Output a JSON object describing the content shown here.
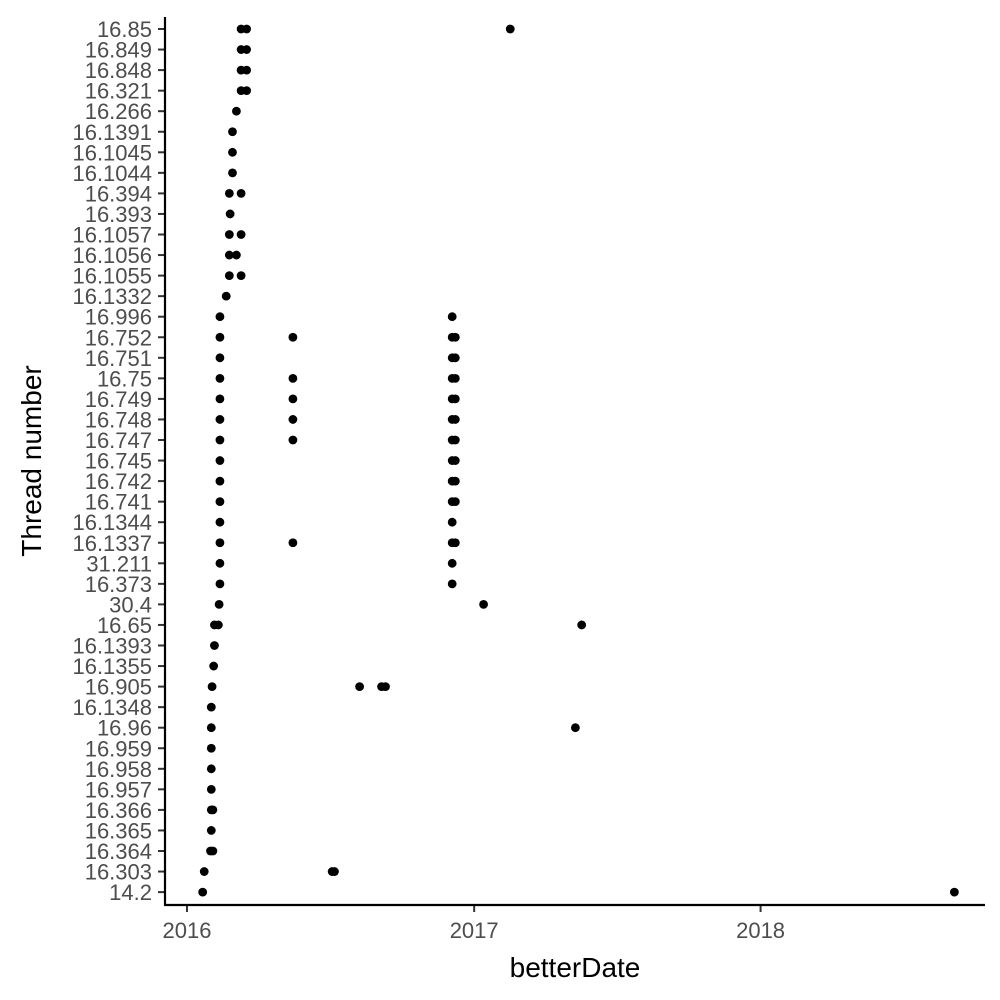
{
  "chart_data": {
    "type": "scatter",
    "title": "",
    "xlabel": "betterDate",
    "ylabel": "Thread number",
    "x_axis": {
      "type": "date",
      "range": [
        "2015-12-04",
        "2018-10-14"
      ],
      "ticks": [
        {
          "date": "2016-01-01",
          "label": "2016"
        },
        {
          "date": "2017-01-01",
          "label": "2017"
        },
        {
          "date": "2018-01-01",
          "label": "2018"
        }
      ]
    },
    "categories": [
      "14.2",
      "16.303",
      "16.364",
      "16.365",
      "16.366",
      "16.957",
      "16.958",
      "16.959",
      "16.96",
      "16.1348",
      "16.905",
      "16.1355",
      "16.1393",
      "16.65",
      "30.4",
      "16.373",
      "31.211",
      "16.1337",
      "16.1344",
      "16.741",
      "16.742",
      "16.745",
      "16.747",
      "16.748",
      "16.749",
      "16.75",
      "16.751",
      "16.752",
      "16.996",
      "16.1332",
      "16.1055",
      "16.1056",
      "16.1057",
      "16.393",
      "16.394",
      "16.1044",
      "16.1045",
      "16.1391",
      "16.266",
      "16.321",
      "16.848",
      "16.849",
      "16.85"
    ],
    "points": [
      {
        "y": "14.2",
        "x": "2016-01-21"
      },
      {
        "y": "14.2",
        "x": "2018-09-05"
      },
      {
        "y": "16.303",
        "x": "2016-01-23"
      },
      {
        "y": "16.303",
        "x": "2016-07-04"
      },
      {
        "y": "16.303",
        "x": "2016-07-07"
      },
      {
        "y": "16.364",
        "x": "2016-01-31"
      },
      {
        "y": "16.364",
        "x": "2016-02-03"
      },
      {
        "y": "16.365",
        "x": "2016-02-01"
      },
      {
        "y": "16.366",
        "x": "2016-02-01"
      },
      {
        "y": "16.366",
        "x": "2016-02-03"
      },
      {
        "y": "16.957",
        "x": "2016-02-01"
      },
      {
        "y": "16.958",
        "x": "2016-02-01"
      },
      {
        "y": "16.959",
        "x": "2016-02-01"
      },
      {
        "y": "16.96",
        "x": "2016-02-01"
      },
      {
        "y": "16.96",
        "x": "2017-05-10"
      },
      {
        "y": "16.1348",
        "x": "2016-02-01"
      },
      {
        "y": "16.905",
        "x": "2016-02-02"
      },
      {
        "y": "16.905",
        "x": "2016-08-08"
      },
      {
        "y": "16.905",
        "x": "2016-09-05"
      },
      {
        "y": "16.905",
        "x": "2016-09-10"
      },
      {
        "y": "16.1355",
        "x": "2016-02-04"
      },
      {
        "y": "16.1393",
        "x": "2016-02-05"
      },
      {
        "y": "16.65",
        "x": "2016-02-05"
      },
      {
        "y": "16.65",
        "x": "2016-02-10"
      },
      {
        "y": "16.65",
        "x": "2017-05-18"
      },
      {
        "y": "30.4",
        "x": "2016-02-11"
      },
      {
        "y": "30.4",
        "x": "2017-01-13"
      },
      {
        "y": "16.373",
        "x": "2016-02-12"
      },
      {
        "y": "16.373",
        "x": "2016-12-04"
      },
      {
        "y": "31.211",
        "x": "2016-02-12"
      },
      {
        "y": "31.211",
        "x": "2016-12-04"
      },
      {
        "y": "16.1337",
        "x": "2016-02-12"
      },
      {
        "y": "16.1337",
        "x": "2016-05-15"
      },
      {
        "y": "16.1337",
        "x": "2016-12-04"
      },
      {
        "y": "16.1337",
        "x": "2016-12-08"
      },
      {
        "y": "16.1344",
        "x": "2016-02-12"
      },
      {
        "y": "16.1344",
        "x": "2016-12-04"
      },
      {
        "y": "16.741",
        "x": "2016-02-12"
      },
      {
        "y": "16.741",
        "x": "2016-12-04"
      },
      {
        "y": "16.741",
        "x": "2016-12-08"
      },
      {
        "y": "16.742",
        "x": "2016-02-12"
      },
      {
        "y": "16.742",
        "x": "2016-12-04"
      },
      {
        "y": "16.742",
        "x": "2016-12-08"
      },
      {
        "y": "16.745",
        "x": "2016-02-12"
      },
      {
        "y": "16.745",
        "x": "2016-12-04"
      },
      {
        "y": "16.745",
        "x": "2016-12-08"
      },
      {
        "y": "16.747",
        "x": "2016-02-12"
      },
      {
        "y": "16.747",
        "x": "2016-05-15"
      },
      {
        "y": "16.747",
        "x": "2016-12-04"
      },
      {
        "y": "16.747",
        "x": "2016-12-08"
      },
      {
        "y": "16.748",
        "x": "2016-02-12"
      },
      {
        "y": "16.748",
        "x": "2016-05-15"
      },
      {
        "y": "16.748",
        "x": "2016-12-04"
      },
      {
        "y": "16.748",
        "x": "2016-12-08"
      },
      {
        "y": "16.749",
        "x": "2016-02-12"
      },
      {
        "y": "16.749",
        "x": "2016-05-15"
      },
      {
        "y": "16.749",
        "x": "2016-12-04"
      },
      {
        "y": "16.749",
        "x": "2016-12-08"
      },
      {
        "y": "16.75",
        "x": "2016-02-12"
      },
      {
        "y": "16.75",
        "x": "2016-05-15"
      },
      {
        "y": "16.75",
        "x": "2016-12-04"
      },
      {
        "y": "16.75",
        "x": "2016-12-08"
      },
      {
        "y": "16.751",
        "x": "2016-02-12"
      },
      {
        "y": "16.751",
        "x": "2016-12-04"
      },
      {
        "y": "16.751",
        "x": "2016-12-08"
      },
      {
        "y": "16.752",
        "x": "2016-02-12"
      },
      {
        "y": "16.752",
        "x": "2016-05-15"
      },
      {
        "y": "16.752",
        "x": "2016-12-04"
      },
      {
        "y": "16.752",
        "x": "2016-12-08"
      },
      {
        "y": "16.996",
        "x": "2016-02-12"
      },
      {
        "y": "16.996",
        "x": "2016-12-04"
      },
      {
        "y": "16.1332",
        "x": "2016-02-20"
      },
      {
        "y": "16.1055",
        "x": "2016-02-24"
      },
      {
        "y": "16.1055",
        "x": "2016-03-10"
      },
      {
        "y": "16.1056",
        "x": "2016-02-24"
      },
      {
        "y": "16.1056",
        "x": "2016-03-04"
      },
      {
        "y": "16.1057",
        "x": "2016-02-24"
      },
      {
        "y": "16.1057",
        "x": "2016-03-10"
      },
      {
        "y": "16.393",
        "x": "2016-02-25"
      },
      {
        "y": "16.394",
        "x": "2016-02-24"
      },
      {
        "y": "16.394",
        "x": "2016-03-10"
      },
      {
        "y": "16.1044",
        "x": "2016-02-28"
      },
      {
        "y": "16.1045",
        "x": "2016-02-28"
      },
      {
        "y": "16.1391",
        "x": "2016-02-28"
      },
      {
        "y": "16.266",
        "x": "2016-03-04"
      },
      {
        "y": "16.321",
        "x": "2016-03-10"
      },
      {
        "y": "16.321",
        "x": "2016-03-17"
      },
      {
        "y": "16.848",
        "x": "2016-03-10"
      },
      {
        "y": "16.848",
        "x": "2016-03-17"
      },
      {
        "y": "16.849",
        "x": "2016-03-10"
      },
      {
        "y": "16.849",
        "x": "2016-03-17"
      },
      {
        "y": "16.85",
        "x": "2016-03-10"
      },
      {
        "y": "16.85",
        "x": "2016-03-17"
      },
      {
        "y": "16.85",
        "x": "2017-02-16"
      }
    ],
    "point_color": "#000000",
    "grid": false,
    "legend": "none"
  }
}
